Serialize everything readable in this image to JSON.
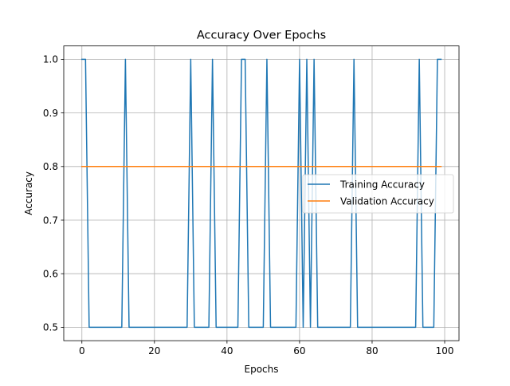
{
  "chart_data": {
    "type": "line",
    "title": "Accuracy Over Epochs",
    "xlabel": "Epochs",
    "ylabel": "Accuracy",
    "xlim": [
      -5,
      103.95
    ],
    "ylim": [
      0.475,
      1.025
    ],
    "xticks": [
      0,
      20,
      40,
      60,
      80,
      100
    ],
    "yticks": [
      0.5,
      0.6,
      0.7,
      0.8,
      0.9,
      1.0
    ],
    "xtick_labels": [
      "0",
      "20",
      "40",
      "60",
      "80",
      "100"
    ],
    "ytick_labels": [
      "0.5",
      "0.6",
      "0.7",
      "0.8",
      "0.9",
      "1.0"
    ],
    "grid": true,
    "legend_position": "center-right",
    "x": [
      0,
      1,
      2,
      3,
      4,
      5,
      6,
      7,
      8,
      9,
      10,
      11,
      12,
      13,
      14,
      15,
      16,
      17,
      18,
      19,
      20,
      21,
      22,
      23,
      24,
      25,
      26,
      27,
      28,
      29,
      30,
      31,
      32,
      33,
      34,
      35,
      36,
      37,
      38,
      39,
      40,
      41,
      42,
      43,
      44,
      45,
      46,
      47,
      48,
      49,
      50,
      51,
      52,
      53,
      54,
      55,
      56,
      57,
      58,
      59,
      60,
      61,
      62,
      63,
      64,
      65,
      66,
      67,
      68,
      69,
      70,
      71,
      72,
      73,
      74,
      75,
      76,
      77,
      78,
      79,
      80,
      81,
      82,
      83,
      84,
      85,
      86,
      87,
      88,
      89,
      90,
      91,
      92,
      93,
      94,
      95,
      96,
      97,
      98,
      99
    ],
    "series": [
      {
        "name": "Training Accuracy",
        "color": "#1f77b4",
        "values": [
          1.0,
          1.0,
          0.5,
          0.5,
          0.5,
          0.5,
          0.5,
          0.5,
          0.5,
          0.5,
          0.5,
          0.5,
          1.0,
          0.5,
          0.5,
          0.5,
          0.5,
          0.5,
          0.5,
          0.5,
          0.5,
          0.5,
          0.5,
          0.5,
          0.5,
          0.5,
          0.5,
          0.5,
          0.5,
          0.5,
          1.0,
          0.5,
          0.5,
          0.5,
          0.5,
          0.5,
          1.0,
          0.5,
          0.5,
          0.5,
          0.5,
          0.5,
          0.5,
          0.5,
          1.0,
          1.0,
          0.5,
          0.5,
          0.5,
          0.5,
          0.5,
          1.0,
          0.5,
          0.5,
          0.5,
          0.5,
          0.5,
          0.5,
          0.5,
          0.5,
          1.0,
          0.5,
          1.0,
          0.5,
          1.0,
          0.5,
          0.5,
          0.5,
          0.5,
          0.5,
          0.5,
          0.5,
          0.5,
          0.5,
          0.5,
          1.0,
          0.5,
          0.5,
          0.5,
          0.5,
          0.5,
          0.5,
          0.5,
          0.5,
          0.5,
          0.5,
          0.5,
          0.5,
          0.5,
          0.5,
          0.5,
          0.5,
          0.5,
          1.0,
          0.5,
          0.5,
          0.5,
          0.5,
          1.0,
          1.0
        ]
      },
      {
        "name": "Validation Accuracy",
        "color": "#ff7f0e",
        "values": [
          0.8,
          0.8,
          0.8,
          0.8,
          0.8,
          0.8,
          0.8,
          0.8,
          0.8,
          0.8,
          0.8,
          0.8,
          0.8,
          0.8,
          0.8,
          0.8,
          0.8,
          0.8,
          0.8,
          0.8,
          0.8,
          0.8,
          0.8,
          0.8,
          0.8,
          0.8,
          0.8,
          0.8,
          0.8,
          0.8,
          0.8,
          0.8,
          0.8,
          0.8,
          0.8,
          0.8,
          0.8,
          0.8,
          0.8,
          0.8,
          0.8,
          0.8,
          0.8,
          0.8,
          0.8,
          0.8,
          0.8,
          0.8,
          0.8,
          0.8,
          0.8,
          0.8,
          0.8,
          0.8,
          0.8,
          0.8,
          0.8,
          0.8,
          0.8,
          0.8,
          0.8,
          0.8,
          0.8,
          0.8,
          0.8,
          0.8,
          0.8,
          0.8,
          0.8,
          0.8,
          0.8,
          0.8,
          0.8,
          0.8,
          0.8,
          0.8,
          0.8,
          0.8,
          0.8,
          0.8,
          0.8,
          0.8,
          0.8,
          0.8,
          0.8,
          0.8,
          0.8,
          0.8,
          0.8,
          0.8,
          0.8,
          0.8,
          0.8,
          0.8,
          0.8,
          0.8,
          0.8,
          0.8,
          0.8,
          0.8
        ]
      }
    ]
  }
}
